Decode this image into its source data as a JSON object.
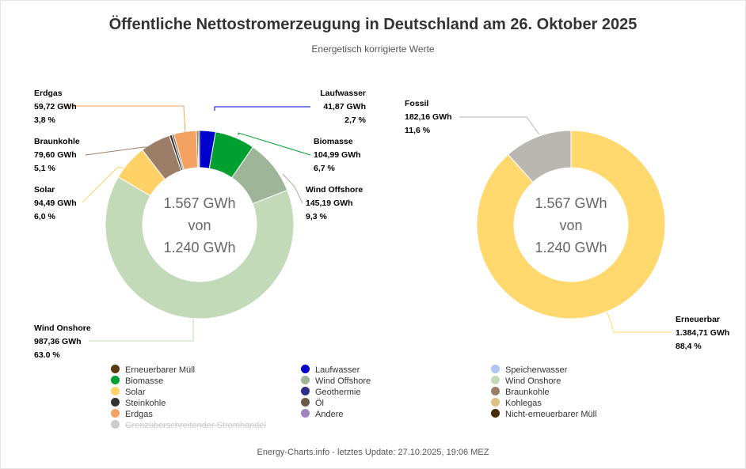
{
  "title": "Öffentliche Nettostromerzeugung in Deutschland am 26. Oktober 2025",
  "subtitle": "Energetisch korrigierte Werte",
  "footer": "Energy-Charts.info - letztes Update: 27.10.2025, 19:06 MEZ",
  "center": {
    "line1": "1.567 GWh",
    "line2": "von",
    "line3": "1.240 GWh"
  },
  "chart_data": [
    {
      "type": "pie",
      "series": [
        {
          "name": "Laufwasser",
          "value": 41.87,
          "value_label": "41,87 GWh",
          "percent_label": "2,7 %",
          "color": "#0000cc"
        },
        {
          "name": "Biomasse",
          "value": 104.99,
          "value_label": "104,99 GWh",
          "percent_label": "6,7 %",
          "color": "#00a030"
        },
        {
          "name": "Wind Offshore",
          "value": 145.19,
          "value_label": "145,19 GWh",
          "percent_label": "9,3 %",
          "color": "#9fb597"
        },
        {
          "name": "Wind Onshore",
          "value": 987.36,
          "value_label": "987,36 GWh",
          "percent_label": "63.0 %",
          "color": "#c3dab8"
        },
        {
          "name": "Solar",
          "value": 94.49,
          "value_label": "94,49 GWh",
          "percent_label": "6,0 %",
          "color": "#ffd268"
        },
        {
          "name": "Braunkohle",
          "value": 79.6,
          "value_label": "79,60 GWh",
          "percent_label": "5,1 %",
          "color": "#9c7e68"
        },
        {
          "name": "Steinkohle",
          "value": 7,
          "color": "#333333"
        },
        {
          "name": "Öl",
          "value": 5,
          "color": "#6e5a48"
        },
        {
          "name": "Erdgas",
          "value": 59.72,
          "value_label": "59,72 GWh",
          "percent_label": "3,8 %",
          "color": "#f4a261"
        },
        {
          "name": "Nicht-erneuerbarer Müll",
          "value": 4,
          "color": "#4a2c0a"
        },
        {
          "name": "Erneuerbarer Müll",
          "value": 4,
          "color": "#5c3a14"
        }
      ]
    },
    {
      "type": "pie",
      "series": [
        {
          "name": "Erneuerbar",
          "value": 1384.71,
          "value_label": "1.384,71 GWh",
          "percent_label": "88,4 %",
          "color": "#ffd96e"
        },
        {
          "name": "Fossil",
          "value": 182.16,
          "value_label": "182,16 GWh",
          "percent_label": "11,6 %",
          "color": "#bab6b2"
        }
      ]
    }
  ],
  "legend": [
    {
      "label": "Erneuerbarer Müll",
      "color": "#5c3a14"
    },
    {
      "label": "Laufwasser",
      "color": "#0000cc"
    },
    {
      "label": "Speicherwasser",
      "color": "#aec7f0"
    },
    {
      "label": "Biomasse",
      "color": "#00a030"
    },
    {
      "label": "Wind Offshore",
      "color": "#9fb597"
    },
    {
      "label": "Wind Onshore",
      "color": "#c3dab8"
    },
    {
      "label": "Solar",
      "color": "#ffd268"
    },
    {
      "label": "Geothermie",
      "color": "#2e2e8a"
    },
    {
      "label": "Braunkohle",
      "color": "#9c7e68"
    },
    {
      "label": "Steinkohle",
      "color": "#333333"
    },
    {
      "label": "Öl",
      "color": "#6e5a48"
    },
    {
      "label": "Kohlegas",
      "color": "#e0c080"
    },
    {
      "label": "Erdgas",
      "color": "#f4a261"
    },
    {
      "label": "Andere",
      "color": "#9e86c0"
    },
    {
      "label": "Nicht-erneuerbarer Müll",
      "color": "#4a2c0a"
    },
    {
      "label": "Grenzüberschreitender Stromhandel",
      "color": "#cccccc",
      "hidden": true
    }
  ]
}
